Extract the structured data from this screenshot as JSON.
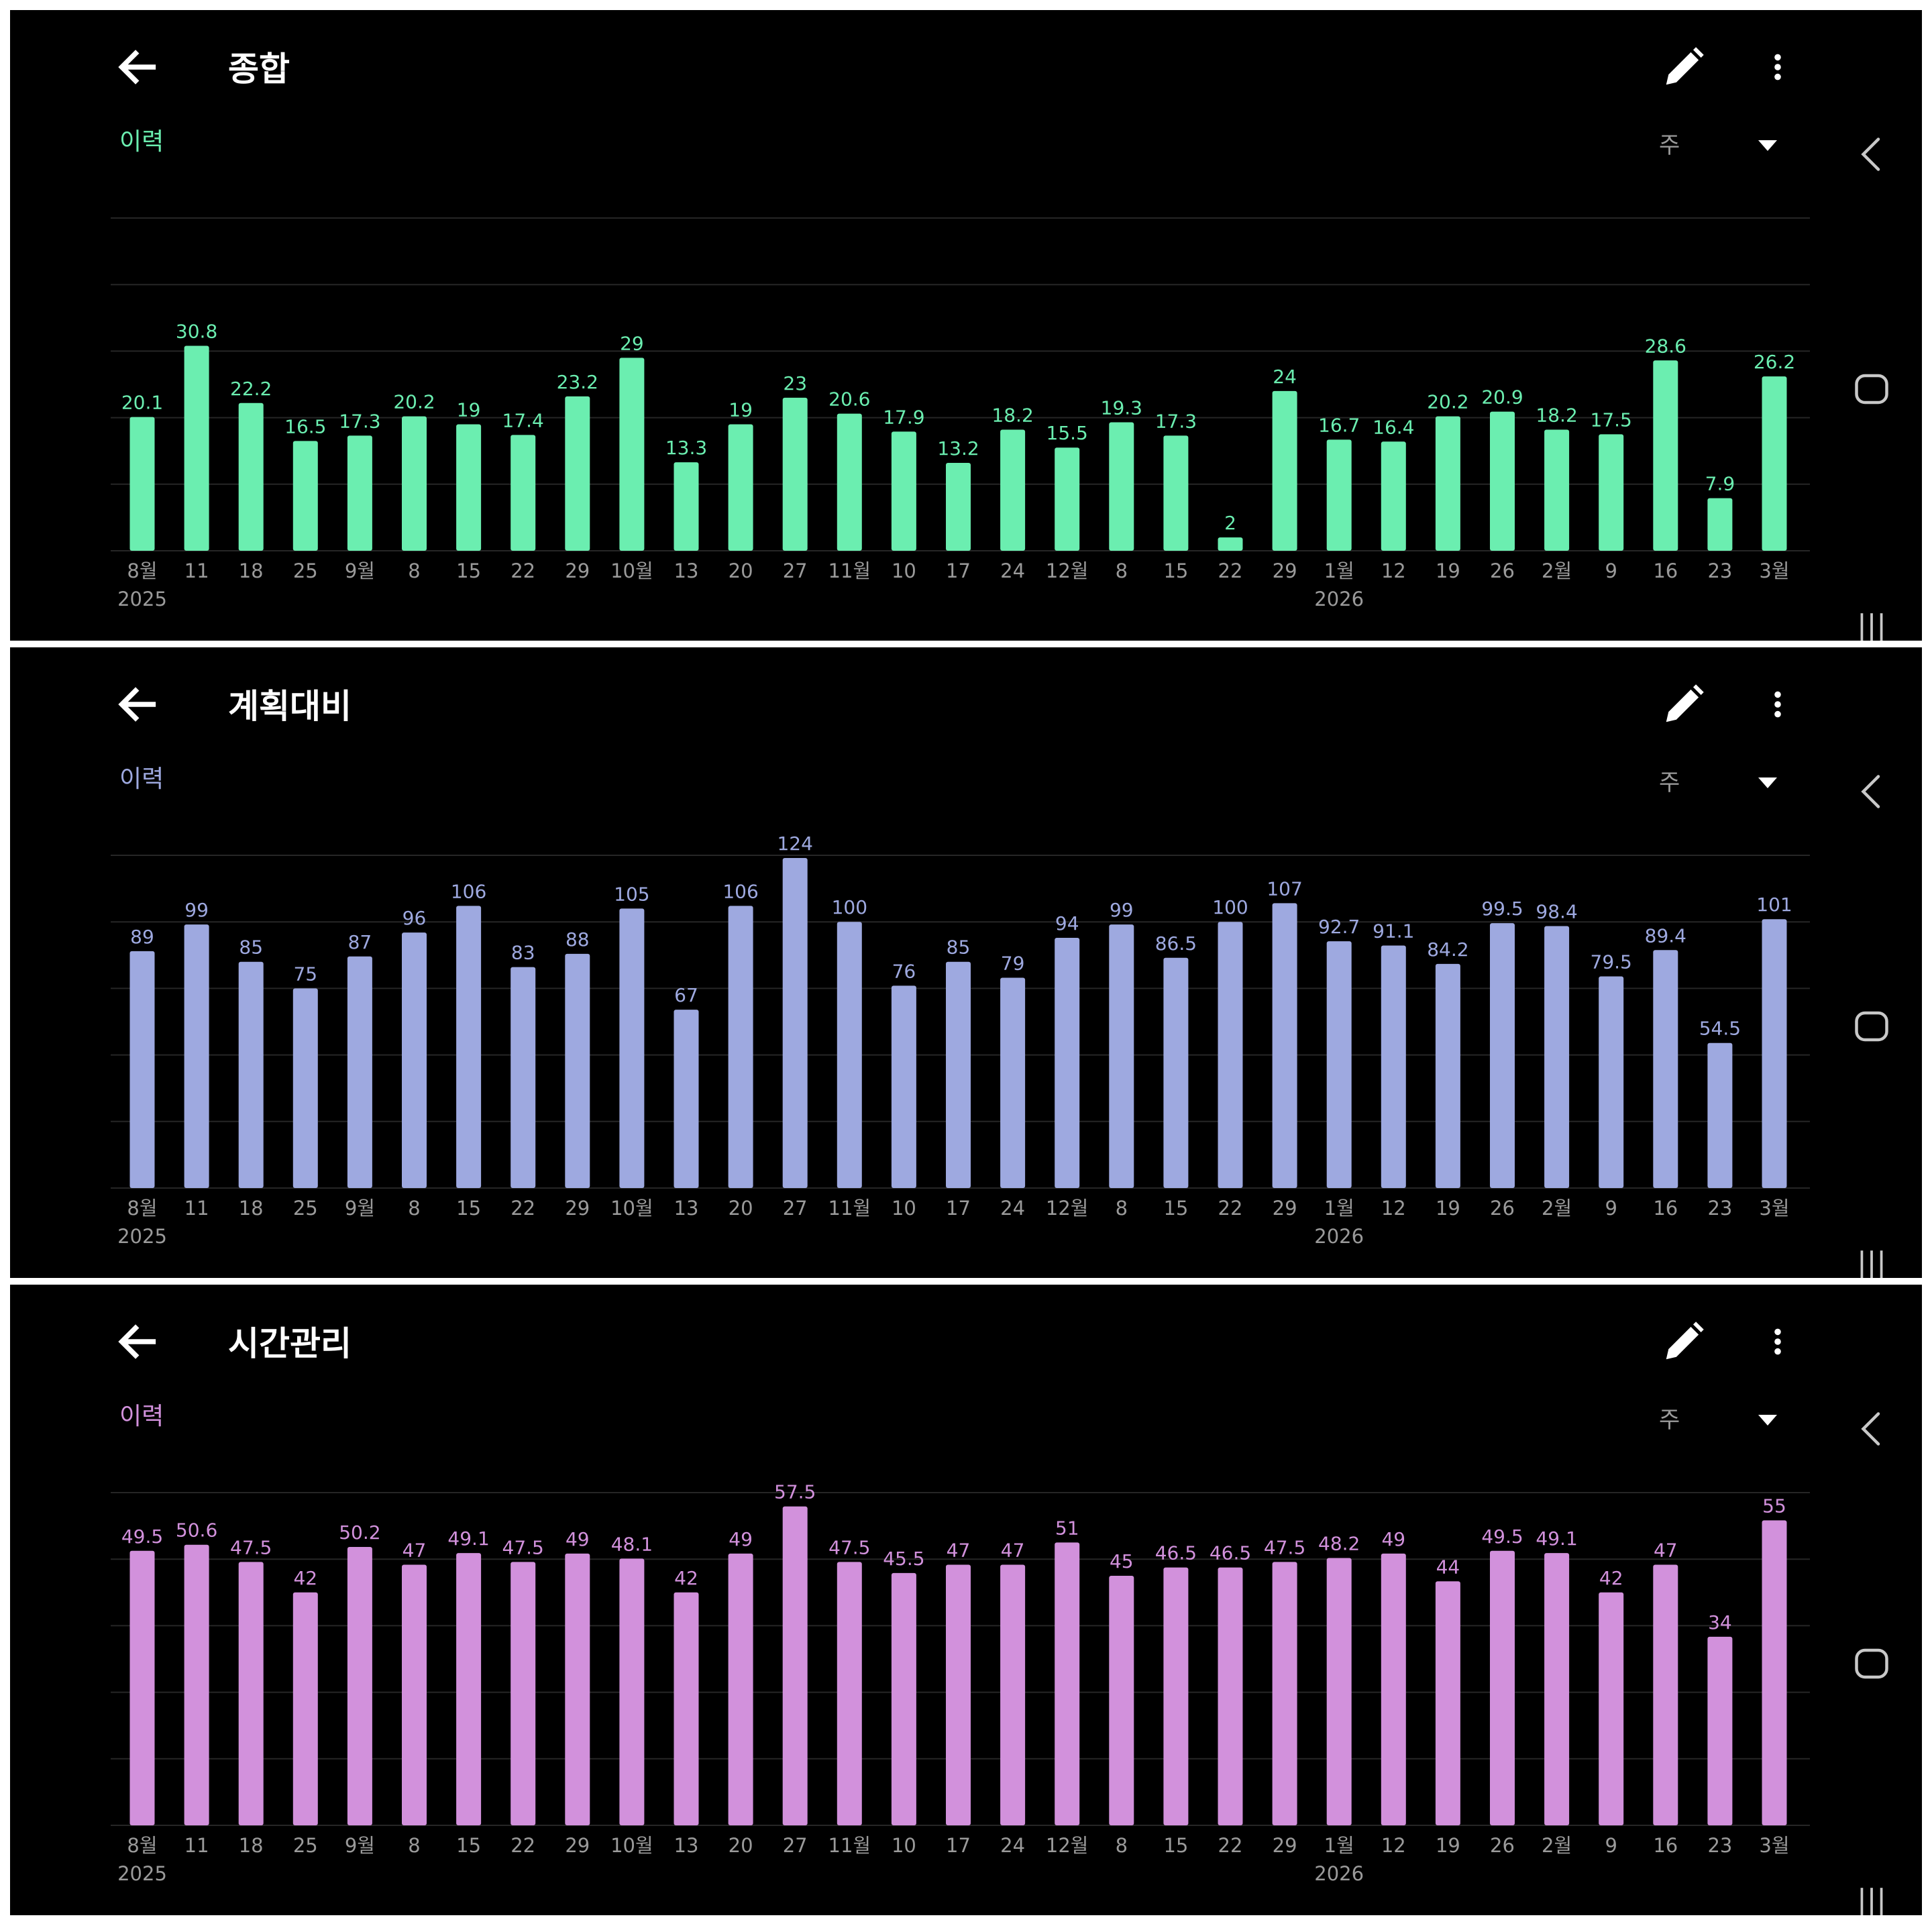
{
  "colors": {
    "background": "#000000",
    "divider": "#ffffff",
    "grid": "#262626",
    "axis_text": "#9a9a9a",
    "title_text": "#ffffff"
  },
  "panels": [
    {
      "title": "종합",
      "history_label": "이력",
      "period": "주",
      "accent": "#6beeb0",
      "icons": {
        "back": "arrow-left-icon",
        "edit": "pencil-icon",
        "more": "more-vertical-icon",
        "sys_back": "chevron-left-icon",
        "sys_home": "rounded-square-icon",
        "sys_recent": "three-bars-icon"
      }
    },
    {
      "title": "계획대비",
      "history_label": "이력",
      "period": "주",
      "accent": "#9ea9e0",
      "icons": {
        "back": "arrow-left-icon",
        "edit": "pencil-icon",
        "more": "more-vertical-icon",
        "sys_back": "chevron-left-icon",
        "sys_home": "rounded-square-icon",
        "sys_recent": "three-bars-icon"
      }
    },
    {
      "title": "시간관리",
      "history_label": "이력",
      "period": "주",
      "accent": "#d291dc",
      "icons": {
        "back": "arrow-left-icon",
        "edit": "pencil-icon",
        "more": "more-vertical-icon",
        "sys_back": "chevron-left-icon",
        "sys_home": "rounded-square-icon",
        "sys_recent": "three-bars-icon"
      }
    }
  ],
  "chart_data": [
    {
      "type": "bar",
      "title": "",
      "categories": [
        "8월",
        "11",
        "18",
        "25",
        "9월",
        "8",
        "15",
        "22",
        "29",
        "10월",
        "13",
        "20",
        "27",
        "11월",
        "10",
        "17",
        "24",
        "12월",
        "8",
        "15",
        "22",
        "29",
        "1월",
        "12",
        "19",
        "26",
        "2월",
        "9",
        "16",
        "23",
        "3월"
      ],
      "year_labels": [
        "2025",
        "",
        "",
        "",
        "",
        "",
        "",
        "",
        "",
        "",
        "",
        "",
        "",
        "",
        "",
        "",
        "",
        "",
        "",
        "",
        "",
        "",
        "2026",
        "",
        "",
        "",
        "",
        "",
        "",
        "",
        ""
      ],
      "values": [
        20.1,
        30.8,
        22.2,
        16.5,
        17.3,
        20.2,
        19,
        17.4,
        23.2,
        29,
        13.3,
        19,
        23,
        20.6,
        17.9,
        13.2,
        18.2,
        15.5,
        19.3,
        17.3,
        2,
        24,
        16.7,
        16.4,
        20.2,
        20.9,
        18.2,
        17.5,
        28.6,
        7.9,
        26.2
      ],
      "ylim": [
        0,
        50
      ],
      "grid": true,
      "legend": "none"
    },
    {
      "type": "bar",
      "title": "",
      "categories": [
        "8월",
        "11",
        "18",
        "25",
        "9월",
        "8",
        "15",
        "22",
        "29",
        "10월",
        "13",
        "20",
        "27",
        "11월",
        "10",
        "17",
        "24",
        "12월",
        "8",
        "15",
        "22",
        "29",
        "1월",
        "12",
        "19",
        "26",
        "2월",
        "9",
        "16",
        "23",
        "3월"
      ],
      "year_labels": [
        "2025",
        "",
        "",
        "",
        "",
        "",
        "",
        "",
        "",
        "",
        "",
        "",
        "",
        "",
        "",
        "",
        "",
        "",
        "",
        "",
        "",
        "",
        "2026",
        "",
        "",
        "",
        "",
        "",
        "",
        "",
        ""
      ],
      "values": [
        89,
        99,
        85,
        75,
        87,
        96,
        106,
        83,
        88,
        105,
        67,
        106,
        124,
        100,
        76,
        85,
        79,
        94,
        99,
        86.5,
        100,
        107,
        92.7,
        91.1,
        84.2,
        99.5,
        98.4,
        79.5,
        89.4,
        54.5,
        101
      ],
      "ylim": [
        0,
        125
      ],
      "grid": true,
      "legend": "none"
    },
    {
      "type": "bar",
      "title": "",
      "categories": [
        "8월",
        "11",
        "18",
        "25",
        "9월",
        "8",
        "15",
        "22",
        "29",
        "10월",
        "13",
        "20",
        "27",
        "11월",
        "10",
        "17",
        "24",
        "12월",
        "8",
        "15",
        "22",
        "29",
        "1월",
        "12",
        "19",
        "26",
        "2월",
        "9",
        "16",
        "23",
        "3월"
      ],
      "year_labels": [
        "2025",
        "",
        "",
        "",
        "",
        "",
        "",
        "",
        "",
        "",
        "",
        "",
        "",
        "",
        "",
        "",
        "",
        "",
        "",
        "",
        "",
        "",
        "2026",
        "",
        "",
        "",
        "",
        "",
        "",
        "",
        ""
      ],
      "values": [
        49.5,
        50.6,
        47.5,
        42,
        50.2,
        47,
        49.1,
        47.5,
        49,
        48.1,
        42,
        49,
        57.5,
        47.5,
        45.5,
        47,
        47,
        51,
        45,
        46.5,
        46.5,
        47.5,
        48.2,
        49,
        44,
        49.5,
        49.1,
        42,
        47,
        34,
        55
      ],
      "ylim": [
        0,
        60
      ],
      "grid": true,
      "legend": "none"
    }
  ]
}
